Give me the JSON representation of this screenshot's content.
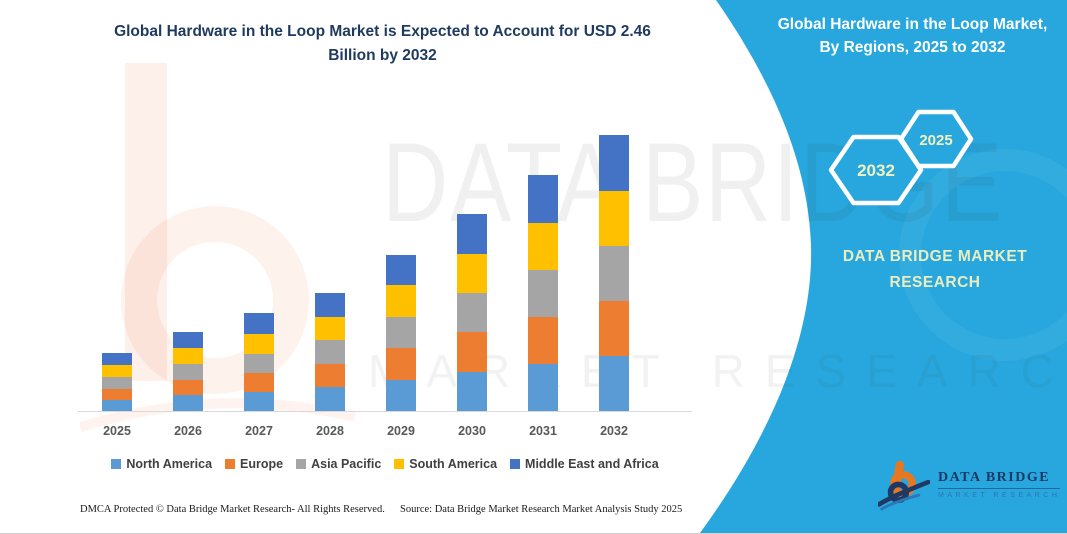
{
  "header": {
    "chart_title": "Global Hardware in the Loop Market is Expected to Account for USD 2.46\nBillion by 2032"
  },
  "panel": {
    "title": "Global Hardware in the Loop Market,\nBy Regions, 2025 to 2032",
    "hexagons": {
      "left_year": "2032",
      "right_year": "2025"
    },
    "brand": "DATA BRIDGE MARKET\nRESEARCH",
    "colors": {
      "background": "#27A7DD",
      "hexagon_stroke": "#FFFFFF",
      "year_text": "#EFF2C0"
    }
  },
  "logo": {
    "name": "DATA BRIDGE",
    "subtitle": "MARKET RESEARCH"
  },
  "watermarks": {
    "big_text": "DATA BRIDGE",
    "small_text": "MARKET RESEARCH"
  },
  "footer": {
    "left": "DMCA Protected © Data Bridge Market Research-  All Rights Reserved.",
    "source": "Source: Data Bridge Market Research  Market Analysis Study 2025"
  },
  "chart_data": {
    "type": "bar",
    "stacked": true,
    "title": "Global Hardware in the Loop Market is Expected to Account for USD 2.46 Billion by 2032",
    "unit": "USD Billion",
    "categories": [
      "2025",
      "2026",
      "2027",
      "2028",
      "2029",
      "2030",
      "2031",
      "2032"
    ],
    "series": [
      {
        "name": "North America",
        "color": "#5B9BD5",
        "values": [
          0.1,
          0.14,
          0.17,
          0.21,
          0.28,
          0.35,
          0.42,
          0.49
        ]
      },
      {
        "name": "Europe",
        "color": "#ED7D31",
        "values": [
          0.1,
          0.14,
          0.17,
          0.21,
          0.28,
          0.35,
          0.42,
          0.49
        ]
      },
      {
        "name": "Asia Pacific",
        "color": "#A5A5A5",
        "values": [
          0.1,
          0.14,
          0.17,
          0.21,
          0.28,
          0.35,
          0.42,
          0.49
        ]
      },
      {
        "name": "South America",
        "color": "#FFC000",
        "values": [
          0.11,
          0.14,
          0.18,
          0.21,
          0.28,
          0.35,
          0.42,
          0.49
        ]
      },
      {
        "name": "Middle East and Africa",
        "color": "#4472C4",
        "values": [
          0.11,
          0.14,
          0.18,
          0.21,
          0.27,
          0.36,
          0.42,
          0.5
        ]
      }
    ],
    "totals": [
      0.52,
      0.7,
      0.87,
      1.05,
      1.39,
      1.76,
      2.1,
      2.46
    ],
    "ylim": [
      0,
      2.46
    ],
    "grid": false,
    "legend_position": "bottom"
  }
}
